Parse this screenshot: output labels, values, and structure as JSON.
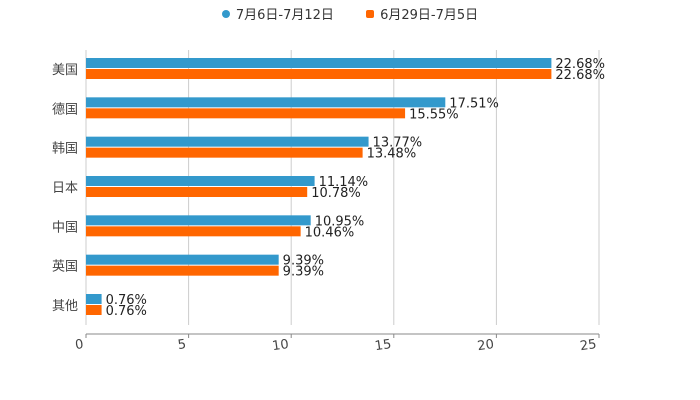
{
  "chart_data": {
    "type": "bar",
    "orientation": "horizontal",
    "title": "",
    "xlabel": "",
    "ylabel": "",
    "categories": [
      "美国",
      "德国",
      "韩国",
      "日本",
      "中国",
      "英国",
      "其他"
    ],
    "series": [
      {
        "name": "7月6日-7月12日",
        "color": "#3399CC",
        "values": [
          22.68,
          17.51,
          13.77,
          11.14,
          10.95,
          9.39,
          0.76
        ],
        "labels": [
          "22.68%",
          "17.51%",
          "13.77%",
          "11.14%",
          "10.95%",
          "9.39%",
          "0.76%"
        ]
      },
      {
        "name": "6月29日-7月5日",
        "color": "#FF6600",
        "values": [
          22.68,
          15.55,
          13.48,
          10.78,
          10.46,
          9.39,
          0.76
        ],
        "labels": [
          "22.68%",
          "15.55%",
          "13.48%",
          "10.78%",
          "10.46%",
          "9.39%",
          "0.76%"
        ]
      }
    ],
    "xlim": [
      0,
      25
    ],
    "xticks": [
      0,
      5,
      10,
      15,
      20,
      25
    ],
    "grid": true,
    "legend_position": "top"
  },
  "legend": {
    "items": [
      {
        "label": "7月6日-7月12日",
        "color": "#3399CC",
        "marker": "circle"
      },
      {
        "label": "6月29日-7月5日",
        "color": "#FF6600",
        "marker": "square"
      }
    ]
  }
}
